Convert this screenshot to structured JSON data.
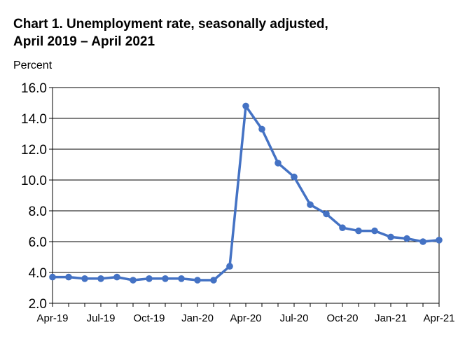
{
  "chart_data": {
    "type": "line",
    "title_line1": "Chart 1. Unemployment rate, seasonally adjusted,",
    "title_line2": "April 2019 – April 2021",
    "ylabel": "Percent",
    "ylim": [
      2.0,
      16.0
    ],
    "yticks": [
      "2.0",
      "4.0",
      "6.0",
      "8.0",
      "10.0",
      "12.0",
      "14.0",
      "16.0"
    ],
    "xtick_labels": [
      {
        "index": 0,
        "label": "Apr-19"
      },
      {
        "index": 3,
        "label": "Jul-19"
      },
      {
        "index": 6,
        "label": "Oct-19"
      },
      {
        "index": 9,
        "label": "Jan-20"
      },
      {
        "index": 12,
        "label": "Apr-20"
      },
      {
        "index": 15,
        "label": "Jul-20"
      },
      {
        "index": 18,
        "label": "Oct-20"
      },
      {
        "index": 21,
        "label": "Jan-21"
      },
      {
        "index": 24,
        "label": "Apr-21"
      }
    ],
    "grid": true,
    "color": "#4472C4",
    "series": [
      {
        "values": [
          3.7,
          3.7,
          3.6,
          3.6,
          3.7,
          3.5,
          3.6,
          3.6,
          3.6,
          3.5,
          3.5,
          4.4,
          14.8,
          13.3,
          11.1,
          10.2,
          8.4,
          7.8,
          6.9,
          6.7,
          6.7,
          6.3,
          6.2,
          6.0,
          6.1
        ]
      }
    ]
  }
}
